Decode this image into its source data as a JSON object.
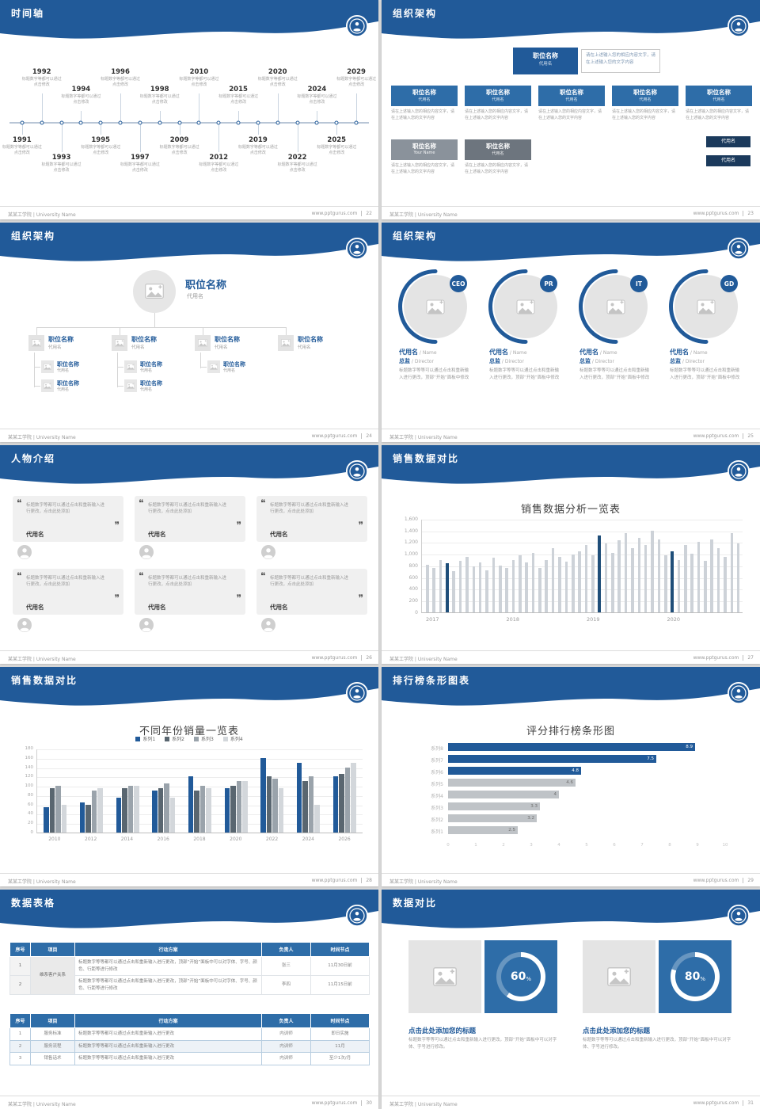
{
  "page": {
    "footer_left": "某某工学院 | University Name",
    "footer_site": "www.pptgurus.com",
    "colors": {
      "header_blue": "#215A99",
      "box_blue": "#2E6DA8",
      "navy": "#1F4E79",
      "mini_navy": "#1B3A5C",
      "bar_gray": "#CDD2D8"
    }
  },
  "slides": {
    "timeline": {
      "title": "时间轴",
      "page_no": "22",
      "caption": "标题数字等都可以通过点击修改",
      "items": [
        {
          "year": "1991",
          "side": "bottom",
          "dist": "near"
        },
        {
          "year": "1992",
          "side": "top",
          "dist": "far"
        },
        {
          "year": "1993",
          "side": "bottom",
          "dist": "far"
        },
        {
          "year": "1994",
          "side": "top",
          "dist": "near"
        },
        {
          "year": "1995",
          "side": "bottom",
          "dist": "near"
        },
        {
          "year": "1996",
          "side": "top",
          "dist": "far"
        },
        {
          "year": "1997",
          "side": "bottom",
          "dist": "far"
        },
        {
          "year": "1998",
          "side": "top",
          "dist": "near"
        },
        {
          "year": "2009",
          "side": "bottom",
          "dist": "near"
        },
        {
          "year": "2010",
          "side": "top",
          "dist": "far"
        },
        {
          "year": "2012",
          "side": "bottom",
          "dist": "far"
        },
        {
          "year": "2015",
          "side": "top",
          "dist": "near"
        },
        {
          "year": "2019",
          "side": "bottom",
          "dist": "near"
        },
        {
          "year": "2020",
          "side": "top",
          "dist": "far"
        },
        {
          "year": "2022",
          "side": "bottom",
          "dist": "far"
        },
        {
          "year": "2024",
          "side": "top",
          "dist": "near"
        },
        {
          "year": "2025",
          "side": "bottom",
          "dist": "near"
        },
        {
          "year": "2029",
          "side": "top",
          "dist": "far"
        }
      ]
    },
    "org1": {
      "title": "组织架构",
      "page_no": "23",
      "root": {
        "name": "职位名称",
        "sub": "代用名"
      },
      "root_note": "请在上述输入您的相应内容文字，请在上述输入您的文字内容",
      "row2": [
        {
          "name": "职位名称",
          "sub": "代用名",
          "note": "请在上述输入您的相应内容文字，请在上述输入您的文字内容"
        },
        {
          "name": "职位名称",
          "sub": "代用名",
          "note": "请在上述输入您的相应内容文字，请在上述输入您的文字内容"
        },
        {
          "name": "职位名称",
          "sub": "代用名",
          "note": "请在上述输入您的相应内容文字，请在上述输入您的文字内容"
        },
        {
          "name": "职位名称",
          "sub": "代用名",
          "note": "请在上述输入您的相应内容文字，请在上述输入您的文字内容"
        },
        {
          "name": "职位名称",
          "sub": "代用名",
          "note": "请在上述输入您的相应内容文字，请在上述输入您的文字内容"
        }
      ],
      "mini_boxes": [
        "代用名",
        "代用名"
      ],
      "row3": [
        {
          "name": "职位名称",
          "sub": "Your Name",
          "note": "请在上述输入您的相应内容文字，请在上述输入您的文字内容"
        },
        {
          "name": "职位名称",
          "sub": "代用名",
          "note": "请在上述输入您的相应内容文字，请在上述输入您的文字内容"
        }
      ]
    },
    "org2": {
      "title": "组织架构",
      "page_no": "24",
      "root": {
        "name": "职位名称",
        "sub": "代用名"
      },
      "branches": [
        {
          "name": "职位名称",
          "sub": "代用名",
          "children": [
            {
              "name": "职位名称",
              "sub": "代用名"
            },
            {
              "name": "职位名称",
              "sub": "代用名"
            }
          ]
        },
        {
          "name": "职位名称",
          "sub": "代用名",
          "children": [
            {
              "name": "职位名称",
              "sub": "代用名"
            },
            {
              "name": "职位名称",
              "sub": "代用名"
            }
          ]
        },
        {
          "name": "职位名称",
          "sub": "代用名",
          "children": [
            {
              "name": "职位名称",
              "sub": "代用名"
            }
          ]
        },
        {
          "name": "职位名称",
          "sub": "代用名",
          "children": []
        }
      ]
    },
    "org3": {
      "title": "组织架构",
      "page_no": "25",
      "members": [
        {
          "badge": "CEO",
          "name": "代用名",
          "name_en": "Name",
          "role": "总监",
          "role_en": "Director",
          "desc": "标题数字等等可以通过点击和重新输入进行更改，顶部“开始”面板中修改"
        },
        {
          "badge": "PR",
          "name": "代用名",
          "name_en": "Name",
          "role": "总监",
          "role_en": "Director",
          "desc": "标题数字等等可以通过点击和重新输入进行更改，顶部“开始”面板中修改"
        },
        {
          "badge": "IT",
          "name": "代用名",
          "name_en": "Name",
          "role": "总监",
          "role_en": "Director",
          "desc": "标题数字等等可以通过点击和重新输入进行更改，顶部“开始”面板中修改"
        },
        {
          "badge": "GD",
          "name": "代用名",
          "name_en": "Name",
          "role": "总监",
          "role_en": "Director",
          "desc": "标题数字等等可以通过点击和重新输入进行更改，顶部“开始”面板中修改"
        }
      ]
    },
    "people": {
      "title": "人物介绍",
      "page_no": "26",
      "cards": [
        {
          "text": "标题数字等都可以通过点击和重新输入进行更改，点击此处添加",
          "name": "代用名"
        },
        {
          "text": "标题数字等都可以通过点击和重新输入进行更改，点击此处添加",
          "name": "代用名"
        },
        {
          "text": "标题数字等都可以通过点击和重新输入进行更改，点击此处添加",
          "name": "代用名"
        },
        {
          "text": "标题数字等都可以通过点击和重新输入进行更改，点击此处添加",
          "name": "代用名"
        },
        {
          "text": "标题数字等都可以通过点击和重新输入进行更改，点击此处添加",
          "name": "代用名"
        },
        {
          "text": "标题数字等都可以通过点击和重新输入进行更改，点击此处添加",
          "name": "代用名"
        }
      ]
    },
    "sales1": {
      "title": "销售数据对比",
      "page_no": "27"
    },
    "sales2": {
      "title": "销售数据对比",
      "page_no": "28"
    },
    "ranking": {
      "title": "排行榜条形图表",
      "page_no": "29"
    },
    "tables": {
      "title": "数据表格",
      "page_no": "30",
      "table1": {
        "headers": [
          "序号",
          "项目",
          "行动方案",
          "负责人",
          "时间节点"
        ],
        "project_merged": "维系客户关系",
        "rows": [
          {
            "no": "1",
            "plan": "标题数字等等都可以通过点击和重新输入进行更改，顶部“开始”面板中可以对字体、字号、颜色、行距等进行修改",
            "owner": "张三",
            "time": "11月30日前"
          },
          {
            "no": "2",
            "plan": "标题数字等等都可以通过点击和重新输入进行更改，顶部“开始”面板中可以对字体、字号、颜色、行距等进行修改",
            "owner": "李四",
            "time": "11月15日前"
          }
        ]
      },
      "table2": {
        "headers": [
          "序号",
          "项目",
          "行动方案",
          "负责人",
          "时间节点"
        ],
        "rows": [
          {
            "no": "1",
            "project": "服务标准",
            "plan": "标题数字等等都可以通过点击和重新输入进行更改",
            "owner": "内训师",
            "time": "即日实施"
          },
          {
            "no": "2",
            "project": "服务流程",
            "plan": "标题数字等等都可以通过点击和重新输入进行更改",
            "owner": "内训师",
            "time": "11月"
          },
          {
            "no": "3",
            "project": "销售话术",
            "plan": "标题数字等等都可以通过点击和重新输入进行更改",
            "owner": "内训师",
            "time": "至少1次/月"
          }
        ]
      }
    },
    "compare": {
      "title": "数据对比",
      "page_no": "31",
      "cards": [
        {
          "percent": 60,
          "heading": "点击此处添加您的标题",
          "desc": "标题数字等等可以通过点击和重新输入进行更改，顶部“开始”面板中可以对字体、字号进行修改。"
        },
        {
          "percent": 80,
          "heading": "点击此处添加您的标题",
          "desc": "标题数字等等可以通过点击和重新输入进行更改，顶部“开始”面板中可以对字体、字号进行修改。"
        }
      ]
    }
  },
  "chart_data": [
    {
      "type": "bar",
      "title": "销售数据分析一览表",
      "x_labels": [
        "2017",
        "2018",
        "2019",
        "2020"
      ],
      "ylim": [
        0,
        1600
      ],
      "yticks": [
        "0",
        "200",
        "400",
        "600",
        "800",
        "1,000",
        "1,200",
        "1,400",
        "1,600"
      ],
      "values": [
        820,
        760,
        900,
        840,
        700,
        880,
        950,
        780,
        860,
        720,
        940,
        800,
        760,
        900,
        980,
        850,
        1020,
        760,
        890,
        1100,
        950,
        870,
        990,
        1040,
        1150,
        980,
        1320,
        1180,
        1020,
        1240,
        1350,
        1100,
        1280,
        1150,
        1400,
        1250,
        980,
        1050,
        900,
        1150,
        1000,
        1200,
        880,
        1250,
        1100,
        950,
        1350,
        1180
      ],
      "highlight_indices": [
        3,
        26,
        37
      ],
      "bar_color": "#CDD2D8",
      "highlight_color": "#1F4E79",
      "grid": true,
      "legend_position": "none"
    },
    {
      "type": "bar",
      "title": "不同年份销量一览表",
      "categories": [
        "2010",
        "2012",
        "2014",
        "2016",
        "2018",
        "2020",
        "2022",
        "2024",
        "2026"
      ],
      "ylim": [
        0,
        180
      ],
      "yticks": [
        "0",
        "20",
        "40",
        "60",
        "80",
        "100",
        "120",
        "140",
        "160",
        "180"
      ],
      "series": [
        {
          "name": "系列1",
          "color": "#215A99",
          "values": [
            55,
            65,
            75,
            90,
            120,
            95,
            160,
            150,
            120
          ]
        },
        {
          "name": "系列2",
          "color": "#596670",
          "values": [
            95,
            60,
            95,
            95,
            90,
            100,
            120,
            110,
            125
          ]
        },
        {
          "name": "系列3",
          "color": "#9AA3AB",
          "values": [
            100,
            90,
            100,
            105,
            100,
            110,
            115,
            120,
            140
          ]
        },
        {
          "name": "系列4",
          "color": "#D3D7DB",
          "values": [
            60,
            95,
            100,
            75,
            95,
            110,
            95,
            60,
            150
          ]
        }
      ],
      "grid": true,
      "legend_position": "top"
    },
    {
      "type": "bar_horizontal",
      "title": "评分排行榜条形图",
      "categories_top_to_bottom": [
        "系列8",
        "系列7",
        "系列6",
        "系列5",
        "系列4",
        "系列3",
        "系列2",
        "系列1"
      ],
      "values_top_to_bottom": [
        8.9,
        7.5,
        4.8,
        4.6,
        4,
        3.3,
        3.2,
        2.5
      ],
      "labels_top_to_bottom": [
        "8.9",
        "7.5",
        "4.8",
        "4.6",
        "4",
        "3.3",
        "3.2",
        "2.5"
      ],
      "xlim": [
        0,
        10
      ],
      "xticks": [
        "0",
        "1",
        "2",
        "3",
        "4",
        "5",
        "6",
        "7",
        "8",
        "9",
        "10"
      ],
      "colors_top_to_bottom": [
        "#215A99",
        "#215A99",
        "#215A99",
        "#BFC3C7",
        "#BFC3C7",
        "#BFC3C7",
        "#BFC3C7",
        "#BFC3C7"
      ],
      "grid": false,
      "legend_position": "none"
    },
    {
      "type": "donut",
      "values": [
        60,
        80
      ],
      "labels": [
        "60%",
        "80%"
      ]
    }
  ]
}
